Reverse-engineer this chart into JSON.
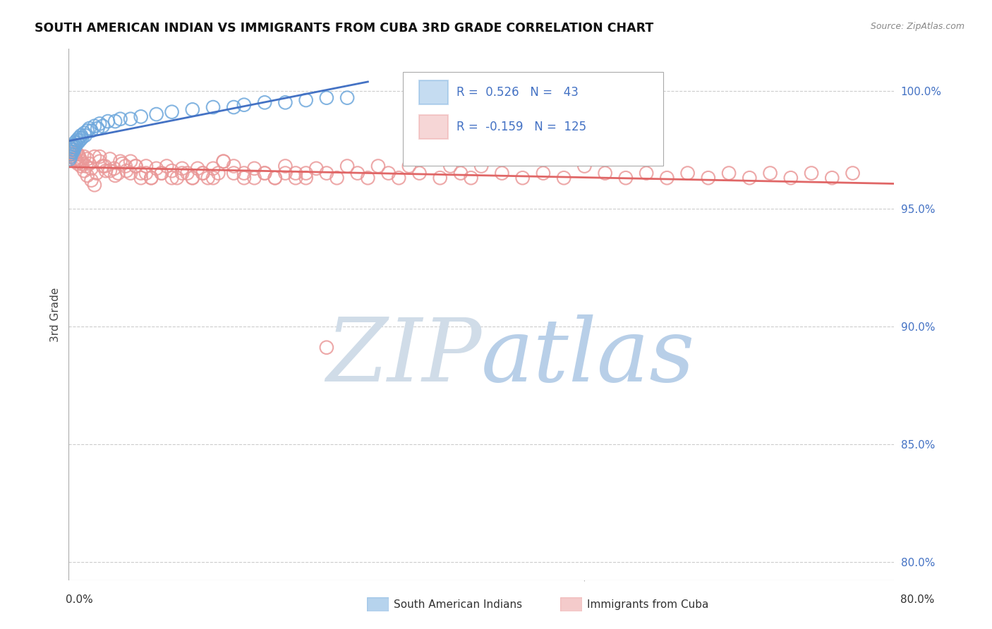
{
  "title": "SOUTH AMERICAN INDIAN VS IMMIGRANTS FROM CUBA 3RD GRADE CORRELATION CHART",
  "source": "Source: ZipAtlas.com",
  "ylabel": "3rd Grade",
  "legend_blue_r": "0.526",
  "legend_blue_n": "43",
  "legend_pink_r": "-0.159",
  "legend_pink_n": "125",
  "legend_label_blue": "South American Indians",
  "legend_label_pink": "Immigrants from Cuba",
  "blue_color": "#6fa8dc",
  "pink_color": "#ea9999",
  "blue_line_color": "#4472c4",
  "pink_line_color": "#e06666",
  "grid_color": "#cccccc",
  "watermark_zip_color": "#c9d9ee",
  "watermark_atlas_color": "#c5d8f0",
  "right_axis_color": "#4472c4",
  "xlim": [
    0.0,
    0.8
  ],
  "ylim": [
    0.792,
    1.018
  ],
  "yticks": [
    0.8,
    0.85,
    0.9,
    0.95,
    1.0
  ],
  "blue_x": [
    0.001,
    0.002,
    0.002,
    0.003,
    0.003,
    0.004,
    0.004,
    0.005,
    0.005,
    0.006,
    0.006,
    0.007,
    0.008,
    0.009,
    0.01,
    0.011,
    0.012,
    0.013,
    0.015,
    0.016,
    0.018,
    0.02,
    0.022,
    0.025,
    0.028,
    0.03,
    0.033,
    0.038,
    0.045,
    0.05,
    0.06,
    0.07,
    0.085,
    0.1,
    0.12,
    0.14,
    0.16,
    0.17,
    0.19,
    0.21,
    0.23,
    0.25,
    0.27
  ],
  "blue_y": [
    0.971,
    0.973,
    0.972,
    0.974,
    0.975,
    0.976,
    0.974,
    0.977,
    0.975,
    0.978,
    0.976,
    0.977,
    0.979,
    0.978,
    0.98,
    0.979,
    0.981,
    0.98,
    0.982,
    0.981,
    0.983,
    0.984,
    0.983,
    0.985,
    0.984,
    0.986,
    0.985,
    0.987,
    0.987,
    0.988,
    0.988,
    0.989,
    0.99,
    0.991,
    0.992,
    0.993,
    0.993,
    0.994,
    0.995,
    0.995,
    0.996,
    0.997,
    0.997
  ],
  "pink_x": [
    0.001,
    0.002,
    0.003,
    0.004,
    0.005,
    0.006,
    0.007,
    0.008,
    0.009,
    0.01,
    0.011,
    0.012,
    0.013,
    0.015,
    0.017,
    0.018,
    0.02,
    0.022,
    0.025,
    0.027,
    0.03,
    0.033,
    0.036,
    0.04,
    0.044,
    0.048,
    0.052,
    0.056,
    0.06,
    0.065,
    0.07,
    0.075,
    0.08,
    0.085,
    0.09,
    0.095,
    0.1,
    0.105,
    0.11,
    0.115,
    0.12,
    0.125,
    0.13,
    0.135,
    0.14,
    0.145,
    0.15,
    0.16,
    0.17,
    0.18,
    0.19,
    0.2,
    0.21,
    0.22,
    0.23,
    0.24,
    0.25,
    0.26,
    0.27,
    0.28,
    0.29,
    0.3,
    0.31,
    0.32,
    0.33,
    0.34,
    0.36,
    0.37,
    0.38,
    0.39,
    0.4,
    0.42,
    0.44,
    0.46,
    0.48,
    0.5,
    0.52,
    0.54,
    0.56,
    0.58,
    0.6,
    0.62,
    0.64,
    0.66,
    0.68,
    0.7,
    0.72,
    0.74,
    0.76,
    0.003,
    0.005,
    0.007,
    0.009,
    0.012,
    0.015,
    0.018,
    0.022,
    0.025,
    0.03,
    0.035,
    0.04,
    0.045,
    0.05,
    0.055,
    0.06,
    0.065,
    0.07,
    0.075,
    0.08,
    0.09,
    0.1,
    0.11,
    0.12,
    0.13,
    0.14,
    0.15,
    0.16,
    0.17,
    0.18,
    0.19,
    0.2,
    0.21,
    0.22,
    0.23,
    0.25
  ],
  "pink_y": [
    0.976,
    0.974,
    0.972,
    0.975,
    0.973,
    0.971,
    0.974,
    0.97,
    0.973,
    0.972,
    0.971,
    0.97,
    0.969,
    0.972,
    0.968,
    0.971,
    0.969,
    0.967,
    0.972,
    0.965,
    0.97,
    0.968,
    0.966,
    0.971,
    0.967,
    0.965,
    0.969,
    0.966,
    0.97,
    0.968,
    0.965,
    0.968,
    0.963,
    0.967,
    0.965,
    0.968,
    0.966,
    0.963,
    0.967,
    0.965,
    0.963,
    0.967,
    0.965,
    0.963,
    0.967,
    0.965,
    0.97,
    0.965,
    0.963,
    0.967,
    0.965,
    0.963,
    0.968,
    0.965,
    0.963,
    0.967,
    0.965,
    0.963,
    0.968,
    0.965,
    0.963,
    0.968,
    0.965,
    0.963,
    0.968,
    0.965,
    0.963,
    0.968,
    0.965,
    0.963,
    0.968,
    0.965,
    0.963,
    0.965,
    0.963,
    0.968,
    0.965,
    0.963,
    0.965,
    0.963,
    0.965,
    0.963,
    0.965,
    0.963,
    0.965,
    0.963,
    0.965,
    0.963,
    0.965,
    0.975,
    0.973,
    0.971,
    0.969,
    0.968,
    0.966,
    0.964,
    0.962,
    0.96,
    0.972,
    0.968,
    0.966,
    0.964,
    0.97,
    0.968,
    0.965,
    0.968,
    0.963,
    0.965,
    0.963,
    0.965,
    0.963,
    0.965,
    0.963,
    0.965,
    0.963,
    0.97,
    0.968,
    0.965,
    0.963,
    0.965,
    0.963,
    0.965,
    0.963,
    0.965,
    0.891
  ]
}
